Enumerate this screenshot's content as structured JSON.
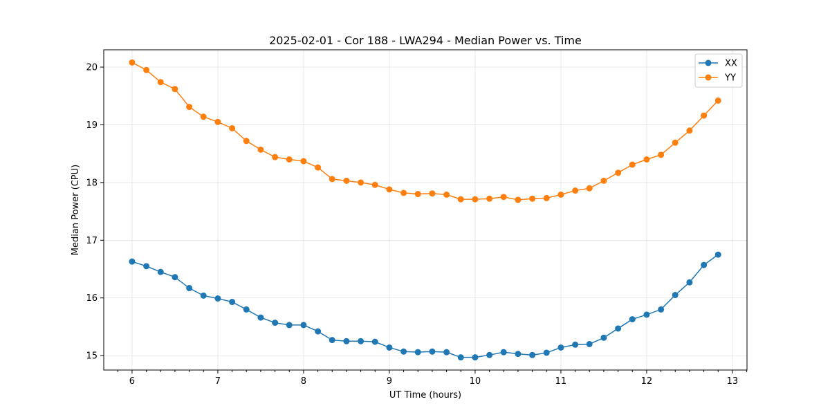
{
  "chart_data": {
    "type": "line",
    "title": "2025-02-01 - Cor 188 - LWA294 - Median Power vs. Time",
    "xlabel": "UT Time (hours)",
    "ylabel": "Median Power (CPU)",
    "xlim": [
      5.67,
      13.17
    ],
    "ylim": [
      14.75,
      20.3
    ],
    "x_ticks": [
      6,
      7,
      8,
      9,
      10,
      11,
      12,
      13
    ],
    "y_ticks": [
      15,
      16,
      17,
      18,
      19,
      20
    ],
    "grid": true,
    "legend_position": "top-right",
    "x": [
      6.0,
      6.167,
      6.333,
      6.5,
      6.667,
      6.833,
      7.0,
      7.167,
      7.333,
      7.5,
      7.667,
      7.833,
      8.0,
      8.167,
      8.333,
      8.5,
      8.667,
      8.833,
      9.0,
      9.167,
      9.333,
      9.5,
      9.667,
      9.833,
      10.0,
      10.167,
      10.333,
      10.5,
      10.667,
      10.833,
      11.0,
      11.167,
      11.333,
      11.5,
      11.667,
      11.833,
      12.0,
      12.167,
      12.333,
      12.5,
      12.667,
      12.833
    ],
    "series": [
      {
        "name": "XX",
        "color": "#1f77b4",
        "values": [
          16.63,
          16.55,
          16.45,
          16.36,
          16.17,
          16.04,
          15.99,
          15.93,
          15.8,
          15.66,
          15.57,
          15.53,
          15.53,
          15.42,
          15.27,
          15.25,
          15.25,
          15.24,
          15.14,
          15.07,
          15.06,
          15.07,
          15.06,
          14.97,
          14.97,
          15.01,
          15.06,
          15.03,
          15.01,
          15.05,
          15.14,
          15.19,
          15.2,
          15.31,
          15.47,
          15.63,
          15.71,
          15.8,
          16.05,
          16.27,
          16.57,
          16.75
        ]
      },
      {
        "name": "YY",
        "color": "#ff7f0e",
        "values": [
          20.08,
          19.95,
          19.74,
          19.62,
          19.31,
          19.14,
          19.05,
          18.94,
          18.72,
          18.57,
          18.44,
          18.4,
          18.37,
          18.26,
          18.06,
          18.03,
          18.0,
          17.96,
          17.88,
          17.82,
          17.8,
          17.81,
          17.79,
          17.71,
          17.71,
          17.72,
          17.75,
          17.7,
          17.72,
          17.73,
          17.79,
          17.86,
          17.9,
          18.03,
          18.17,
          18.31,
          18.4,
          18.48,
          18.69,
          18.9,
          19.16,
          19.42
        ]
      }
    ]
  }
}
